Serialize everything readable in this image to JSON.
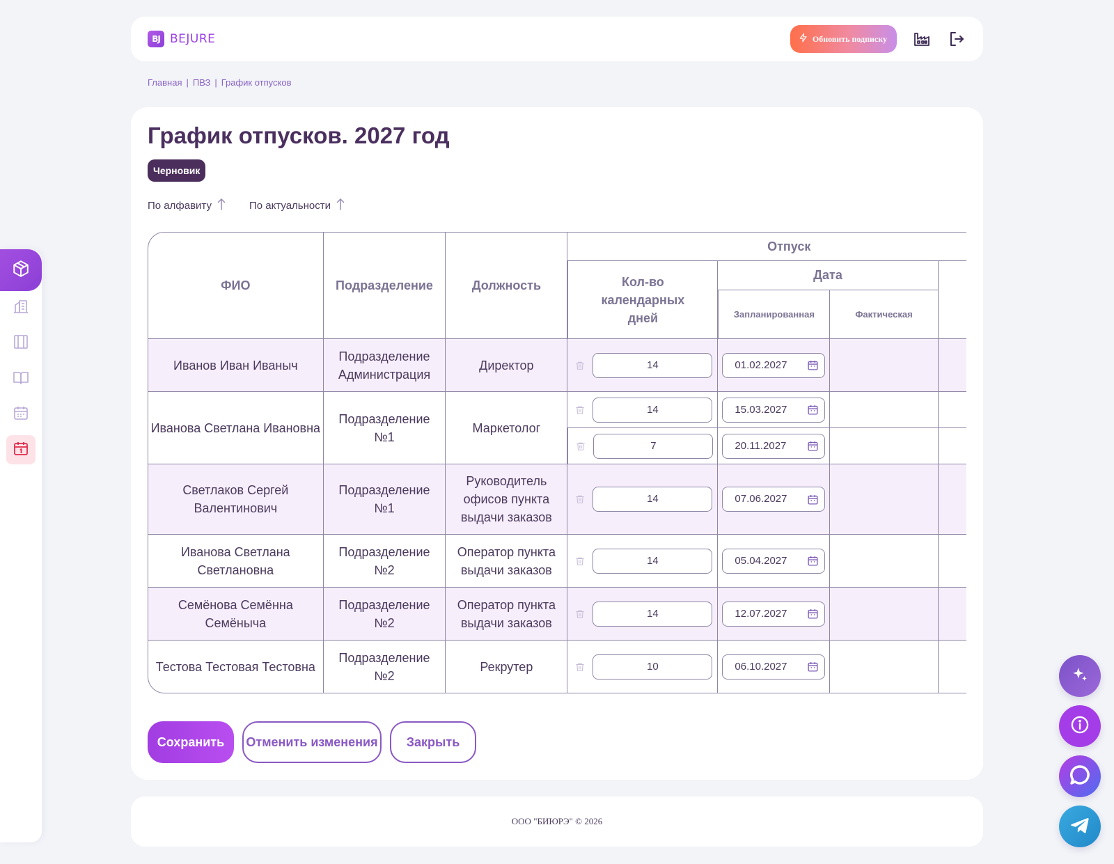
{
  "header": {
    "logo_mark": "BJ",
    "logo_text": "BEJURE",
    "upgrade_label": "Обновить подписку"
  },
  "breadcrumb": [
    "Главная",
    "ПВЗ",
    "График отпусков"
  ],
  "page": {
    "title": "График отпусков. 2027 год",
    "status_badge": "Черновик"
  },
  "sort": {
    "alphabet": "По алфавиту",
    "relevance": "По актуальности"
  },
  "table": {
    "headers": {
      "fio": "ФИО",
      "department": "Подразделение",
      "position": "Должность",
      "vacation": "Отпуск",
      "days": "Кол-во календарных дней",
      "date": "Дата",
      "planned": "Запланированная",
      "actual": "Фактическая"
    },
    "rows": [
      {
        "name": "Иванов Иван Иваныч",
        "department": "Подразделение Администрация",
        "position": "Директор",
        "vacations": [
          {
            "days": "14",
            "planned": "01.02.2027",
            "actual": ""
          }
        ]
      },
      {
        "name": "Иванова Светлана Ивановна",
        "department": "Подразделение №1",
        "position": "Маркетолог",
        "vacations": [
          {
            "days": "14",
            "planned": "15.03.2027",
            "actual": ""
          },
          {
            "days": "7",
            "planned": "20.11.2027",
            "actual": ""
          }
        ]
      },
      {
        "name": "Светлаков Сергей Валентинович",
        "department": "Подразделение №1",
        "position": "Руководитель офисов пункта выдачи заказов",
        "vacations": [
          {
            "days": "14",
            "planned": "07.06.2027",
            "actual": ""
          }
        ]
      },
      {
        "name": "Иванова Светлана Светлановна",
        "department": "Подразделение №2",
        "position": "Оператор пункта выдачи заказов",
        "vacations": [
          {
            "days": "14",
            "planned": "05.04.2027",
            "actual": ""
          }
        ]
      },
      {
        "name": "Семёнова Семённа Семёныча",
        "department": "Подразделение №2",
        "position": "Оператор пункта выдачи заказов",
        "vacations": [
          {
            "days": "14",
            "planned": "12.07.2027",
            "actual": ""
          }
        ]
      },
      {
        "name": "Тестова Тестовая Тестовна",
        "department": "Подразделение №2",
        "position": "Рекрутер",
        "vacations": [
          {
            "days": "10",
            "planned": "06.10.2027",
            "actual": ""
          }
        ]
      }
    ]
  },
  "actions": {
    "save": "Сохранить",
    "cancel": "Отменить изменения",
    "close": "Закрыть"
  },
  "footer": {
    "copyright": "ООО \"БИЮРЭ\" © 2026"
  },
  "colors": {
    "accent": "#a13de2",
    "title": "#4a2f5f",
    "alt_row": "#f6eefb",
    "border": "#8e86a5",
    "link": "#8a63c6"
  }
}
